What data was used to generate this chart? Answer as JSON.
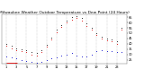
{
  "title": "Milwaukee Weather Outdoor Temperature vs Dew Point (24 Hours)",
  "temp_hours": [
    1,
    2,
    3,
    4,
    5,
    6,
    7,
    8,
    9,
    10,
    11,
    12,
    13,
    14,
    15,
    16,
    17,
    18,
    19,
    20,
    21,
    22,
    23,
    24
  ],
  "temp": [
    38,
    36,
    34,
    33,
    32,
    30,
    29,
    32,
    37,
    44,
    51,
    56,
    60,
    63,
    64,
    62,
    57,
    53,
    48,
    45,
    43,
    42,
    40,
    53
  ],
  "dew_hours": [
    1,
    2,
    3,
    4,
    5,
    6,
    7,
    8,
    9,
    10,
    11,
    12,
    13,
    14,
    15,
    16,
    17,
    18,
    19,
    20,
    21,
    22,
    23,
    24
  ],
  "dew": [
    28,
    27,
    26,
    25,
    24,
    23,
    22,
    23,
    25,
    26,
    27,
    29,
    30,
    31,
    29,
    28,
    28,
    30,
    33,
    34,
    33,
    33,
    32,
    32
  ],
  "hi_hours": [
    1,
    2,
    3,
    4,
    5,
    6,
    7,
    8,
    9,
    10,
    11,
    12,
    13,
    14,
    15,
    16,
    17,
    18,
    19,
    20,
    21,
    22,
    23,
    24
  ],
  "hi": [
    40,
    38,
    36,
    35,
    34,
    32,
    31,
    34,
    39,
    46,
    53,
    58,
    62,
    65,
    66,
    64,
    59,
    55,
    50,
    47,
    45,
    44,
    42,
    55
  ],
  "legend_line_x": [
    1.0,
    3.2
  ],
  "legend_line_y": [
    22.5,
    22.5
  ],
  "x_ticks": [
    1,
    3,
    5,
    7,
    9,
    11,
    13,
    15,
    17,
    19,
    21,
    23
  ],
  "x_tick_labels": [
    "1",
    "3",
    "5",
    "7",
    "9",
    "11",
    "13",
    "15",
    "17",
    "19",
    "21",
    "23"
  ],
  "y_ticks": [
    25,
    30,
    35,
    40,
    45,
    50,
    55,
    60,
    65
  ],
  "ylim": [
    21,
    68
  ],
  "xlim": [
    0.0,
    25.0
  ],
  "vgrid_positions": [
    1,
    3,
    5,
    7,
    9,
    11,
    13,
    15,
    17,
    19,
    21,
    23
  ],
  "temp_color": "#dd0000",
  "dew_color": "#0000cc",
  "hi_color": "#111111",
  "grid_color": "#999999",
  "bg_color": "#ffffff",
  "title_fontsize": 3.2,
  "tick_fontsize": 2.6,
  "marker_size": 1.5,
  "legend_fontsize": 2.2
}
